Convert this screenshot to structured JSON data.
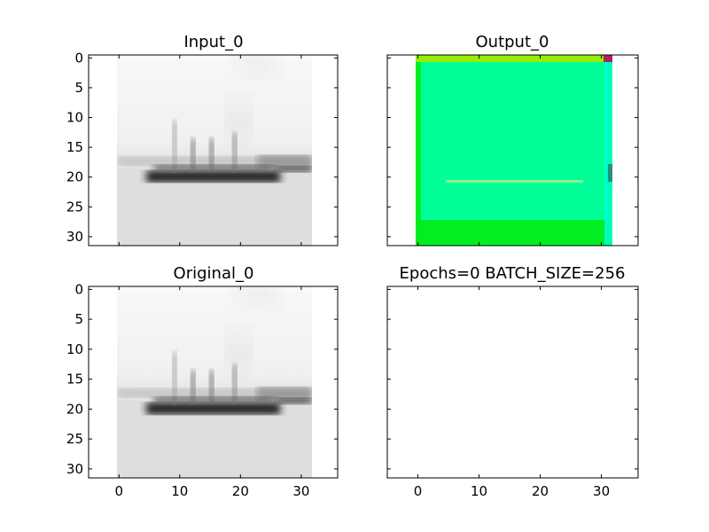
{
  "chart_data": [
    {
      "type": "image",
      "title": "Input_0",
      "image_description": "grayscale ship silhouette on light background",
      "x_extent": [
        -0.5,
        31.5
      ],
      "y_extent": [
        -0.5,
        31.5
      ],
      "xlim": [
        -5,
        36
      ],
      "ylim": [
        31.5,
        -0.5
      ],
      "xticks": [
        0,
        10,
        20,
        30
      ],
      "yticks": [
        0,
        5,
        10,
        15,
        20,
        25,
        30
      ],
      "show_x_tick_labels": false,
      "show_y_tick_labels": true
    },
    {
      "type": "image",
      "title": "Output_0",
      "image_description": "bright green / spring-green image with a faint horizontal line near row 21",
      "colors": {
        "border": "#00ee22",
        "interior": "#00ff99",
        "top_edge": "#bbee00",
        "right_edge": "#00ffee",
        "corner": "#aa2266",
        "line": "#aaee88"
      },
      "x_extent": [
        -0.5,
        31.5
      ],
      "y_extent": [
        -0.5,
        31.5
      ],
      "xlim": [
        -5,
        36
      ],
      "ylim": [
        31.5,
        -0.5
      ],
      "xticks": [
        0,
        10,
        20,
        30
      ],
      "yticks": [
        0,
        5,
        10,
        15,
        20,
        25,
        30
      ],
      "show_x_tick_labels": false,
      "show_y_tick_labels": false
    },
    {
      "type": "image",
      "title": "Original_0",
      "image_description": "grayscale ship silhouette on light background",
      "x_extent": [
        -0.5,
        31.5
      ],
      "y_extent": [
        -0.5,
        31.5
      ],
      "xlim": [
        -5,
        36
      ],
      "ylim": [
        31.5,
        -0.5
      ],
      "xticks": [
        0,
        10,
        20,
        30
      ],
      "yticks": [
        0,
        5,
        10,
        15,
        20,
        25,
        30
      ],
      "show_x_tick_labels": true,
      "show_y_tick_labels": true
    },
    {
      "type": "image",
      "title": "Epochs=0 BATCH_SIZE=256",
      "image_description": "empty axes",
      "xlim": [
        -5,
        36
      ],
      "ylim": [
        31.5,
        -0.5
      ],
      "xticks": [
        0,
        10,
        20,
        30
      ],
      "yticks": [
        0,
        5,
        10,
        15,
        20,
        25,
        30
      ],
      "show_x_tick_labels": true,
      "show_y_tick_labels": false
    }
  ]
}
